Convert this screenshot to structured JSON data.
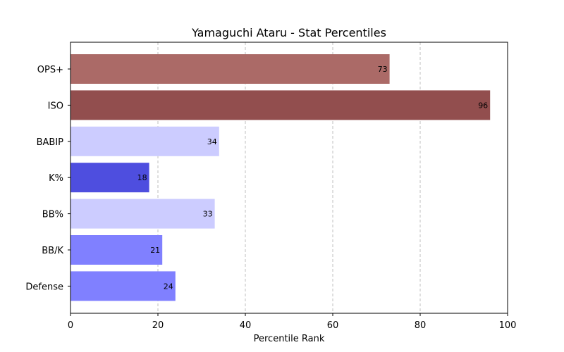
{
  "chart_data": {
    "type": "bar",
    "orientation": "horizontal",
    "title": "Yamaguchi Ataru - Stat Percentiles",
    "xlabel": "Percentile Rank",
    "ylabel": "",
    "xlim": [
      0,
      100
    ],
    "xticks": [
      "0",
      "20",
      "40",
      "60",
      "80",
      "100"
    ],
    "grid": "x-dashed",
    "categories": [
      "OPS+",
      "ISO",
      "BABIP",
      "K%",
      "BB%",
      "BB/K",
      "Defense"
    ],
    "values": [
      73,
      96,
      34,
      18,
      33,
      21,
      24
    ],
    "colors": [
      "#ab6a67",
      "#924e4e",
      "#ccccff",
      "#4e4edf",
      "#ccccff",
      "#8080ff",
      "#8080ff"
    ]
  }
}
